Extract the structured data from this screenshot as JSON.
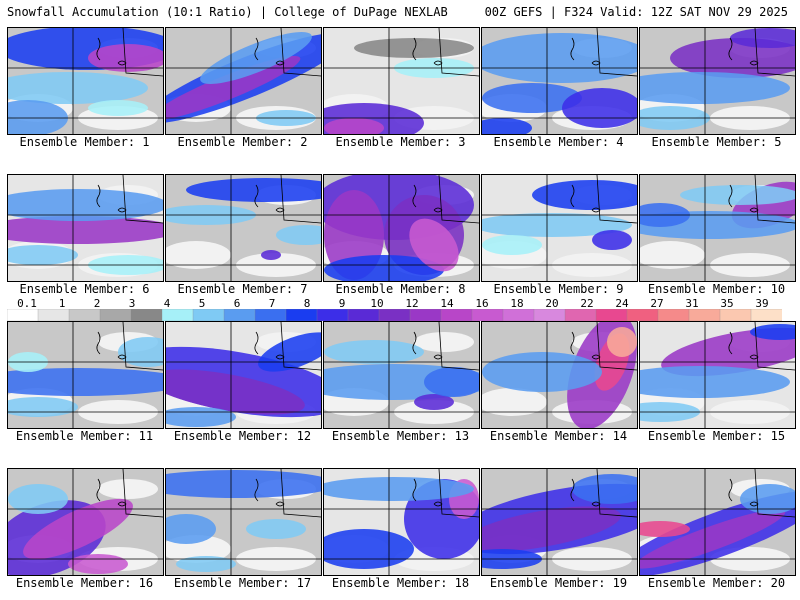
{
  "header": {
    "title_left": "Snowfall Accumulation (10:1 Ratio) | College of DuPage NEXLAB",
    "title_right": "00Z GEFS | F324 Valid: 12Z SAT NOV 29 2025"
  },
  "colorbar": {
    "tick_labels": [
      "0.1",
      "1",
      "2",
      "3",
      "4",
      "5",
      "6",
      "7",
      "8",
      "9",
      "10",
      "12",
      "14",
      "16",
      "18",
      "20",
      "22",
      "24",
      "27",
      "31",
      "35",
      "39"
    ],
    "colors": [
      "#ffffff",
      "#e6e6e6",
      "#c8c8c8",
      "#a8a8a8",
      "#888888",
      "#a6f0f8",
      "#7fcaf4",
      "#5a9cf0",
      "#3a6ff0",
      "#1a3df0",
      "#3c2ee8",
      "#5a2ad6",
      "#7a30c4",
      "#9a38c6",
      "#b846c8",
      "#c85ad0",
      "#d070d8",
      "#d888de",
      "#e066b0",
      "#e84890",
      "#f06080",
      "#f58a8a",
      "#f8aa9a",
      "#fbc8b0",
      "#fde0c8"
    ]
  },
  "panels": [
    {
      "label": "Ensemble Member: 1"
    },
    {
      "label": "Ensemble Member: 2"
    },
    {
      "label": "Ensemble Member: 3"
    },
    {
      "label": "Ensemble Member: 4"
    },
    {
      "label": "Ensemble Member: 5"
    },
    {
      "label": "Ensemble Member: 6"
    },
    {
      "label": "Ensemble Member: 7"
    },
    {
      "label": "Ensemble Member: 8"
    },
    {
      "label": "Ensemble Member: 9"
    },
    {
      "label": "Ensemble Member: 10"
    },
    {
      "label": "Ensemble Member: 11"
    },
    {
      "label": "Ensemble Member: 12"
    },
    {
      "label": "Ensemble Member: 13"
    },
    {
      "label": "Ensemble Member: 14"
    },
    {
      "label": "Ensemble Member: 15"
    },
    {
      "label": "Ensemble Member: 16"
    },
    {
      "label": "Ensemble Member: 17"
    },
    {
      "label": "Ensemble Member: 18"
    },
    {
      "label": "Ensemble Member: 19"
    },
    {
      "label": "Ensemble Member: 20"
    }
  ]
}
